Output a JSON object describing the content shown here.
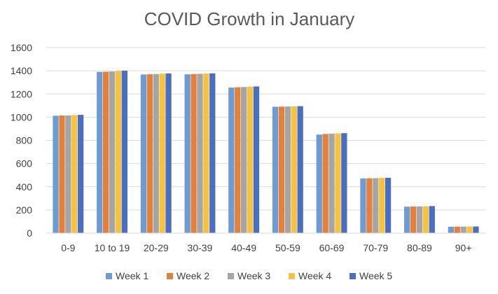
{
  "chart_data": {
    "type": "bar",
    "title": "COVID Growth in January",
    "xlabel": "",
    "ylabel": "",
    "ylim": [
      0,
      1600
    ],
    "yticks": [
      0,
      200,
      400,
      600,
      800,
      1000,
      1200,
      1400,
      1600
    ],
    "grid": true,
    "legend_position": "bottom",
    "categories": [
      "0-9",
      "10 to 19",
      "20-29",
      "30-39",
      "40-49",
      "50-59",
      "60-69",
      "70-79",
      "80-89",
      "90+"
    ],
    "series": [
      {
        "name": "Week 1",
        "color": "#6f9bd3",
        "values": [
          1012,
          1390,
          1368,
          1370,
          1255,
          1090,
          850,
          472,
          228,
          55
        ]
      },
      {
        "name": "Week 2",
        "color": "#e2803c",
        "values": [
          1014,
          1392,
          1370,
          1372,
          1258,
          1091,
          855,
          473,
          229,
          56
        ]
      },
      {
        "name": "Week 3",
        "color": "#a5a5a5",
        "values": [
          1015,
          1394,
          1372,
          1374,
          1260,
          1092,
          858,
          474,
          230,
          56
        ]
      },
      {
        "name": "Week 4",
        "color": "#f5c242",
        "values": [
          1018,
          1398,
          1375,
          1376,
          1263,
          1093,
          860,
          476,
          231,
          57
        ]
      },
      {
        "name": "Week 5",
        "color": "#4a6fc0",
        "values": [
          1020,
          1401,
          1377,
          1378,
          1265,
          1095,
          862,
          477,
          233,
          57
        ]
      }
    ]
  }
}
